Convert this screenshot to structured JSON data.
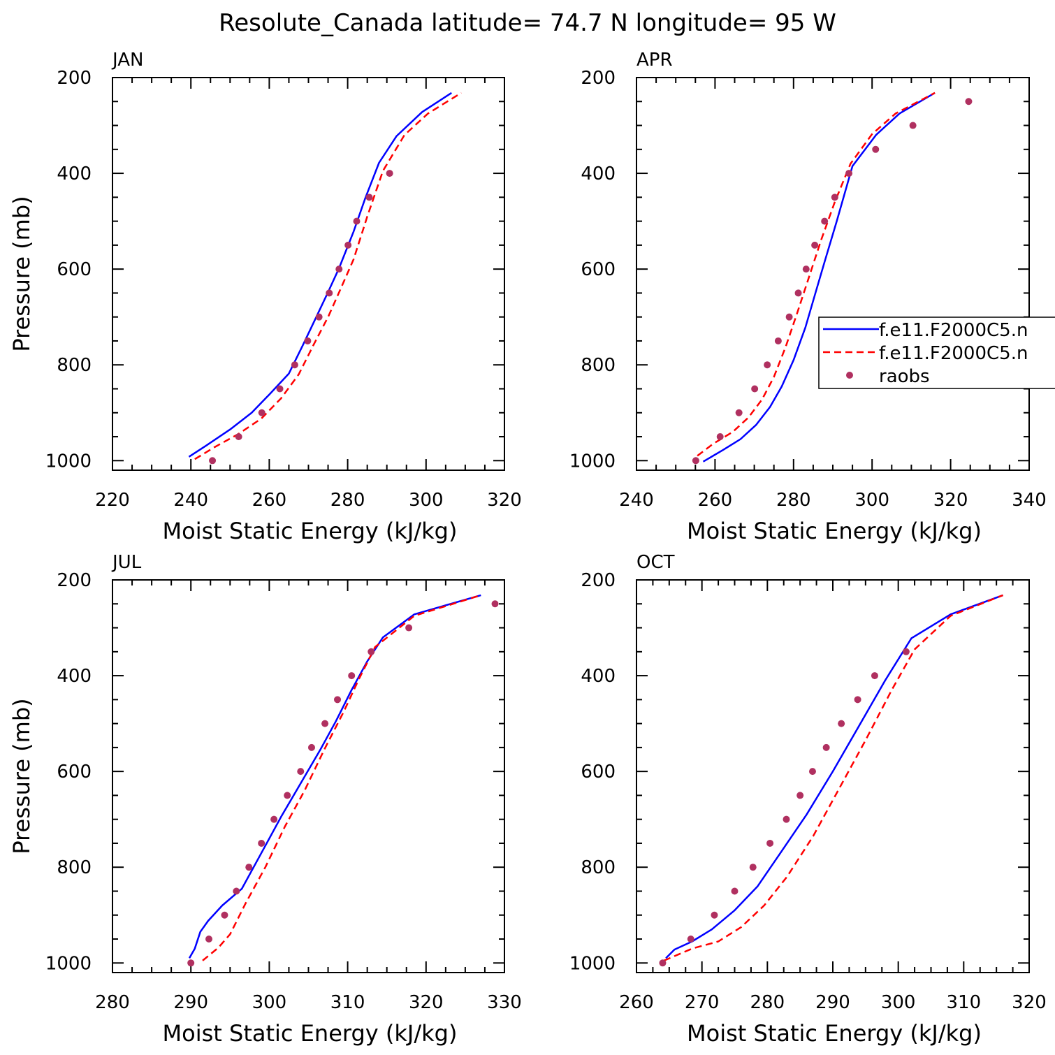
{
  "figure": {
    "title": "Resolute_Canada  latitude= 74.7 N longitude= 95 W",
    "xlabel": "Moist Static Energy (kJ/kg)",
    "ylabel": "Pressure (mb)",
    "legend": {
      "location": "right of APR panel",
      "entries": [
        {
          "label": "f.e11.F2000C5.n",
          "style": "solid",
          "color": "#0000ff"
        },
        {
          "label": "f.e11.F2000C5.n",
          "style": "dashed",
          "color": "#ff0000"
        },
        {
          "label": "raobs",
          "style": "marker",
          "color": "#b03060"
        }
      ]
    }
  },
  "colors": {
    "model_solid": "#0000ff",
    "model_dashed": "#ff0000",
    "raobs": "#b03060",
    "axes": "#000000"
  },
  "chart_data": [
    {
      "type": "line",
      "title": "JAN",
      "xlabel": "Moist Static Energy (kJ/kg)",
      "ylabel": "Pressure (mb)",
      "xlim": [
        220,
        320
      ],
      "ylim": [
        1020,
        200
      ],
      "y_inverted": true,
      "xticks": [
        220,
        240,
        260,
        280,
        300,
        320
      ],
      "yticks": [
        200,
        400,
        600,
        800,
        1000
      ],
      "series": [
        {
          "name": "f.e11.F2000C5.n",
          "style": "solid",
          "color": "#0000ff",
          "x": [
            239.5,
            244,
            250,
            255.5,
            260,
            265,
            268.5,
            272,
            275,
            277.8,
            281.5,
            284.5,
            288,
            292.5,
            299,
            306.5
          ],
          "y": [
            992,
            968,
            935,
            900,
            862,
            818,
            760,
            700,
            648,
            598,
            522,
            452,
            378,
            322,
            272,
            232
          ]
        },
        {
          "name": "f.e11.F2000C5.n",
          "style": "dashed",
          "color": "#ff0000",
          "x": [
            241,
            246,
            252,
            258,
            263,
            267.5,
            271.5,
            275,
            278,
            281.5,
            285,
            289,
            294.5,
            300.5,
            309
          ],
          "y": [
            997,
            972,
            945,
            912,
            870,
            820,
            755,
            700,
            645,
            580,
            490,
            395,
            320,
            275,
            232
          ]
        },
        {
          "name": "raobs",
          "style": "marker",
          "color": "#b03060",
          "x": [
            245.5,
            252.2,
            258.1,
            262.7,
            266.5,
            269.8,
            272.7,
            275.3,
            277.8,
            280.1,
            282.3,
            285.5,
            290.7
          ],
          "y": [
            1000,
            950,
            900,
            850,
            800,
            750,
            700,
            650,
            600,
            550,
            500,
            450,
            400
          ]
        }
      ]
    },
    {
      "type": "line",
      "title": "APR",
      "xlabel": "Moist Static Energy (kJ/kg)",
      "ylabel": "Pressure (mb)",
      "xlim": [
        240,
        340
      ],
      "ylim": [
        1020,
        200
      ],
      "y_inverted": true,
      "xticks": [
        240,
        260,
        280,
        300,
        320,
        340
      ],
      "yticks": [
        200,
        400,
        600,
        800,
        1000
      ],
      "series": [
        {
          "name": "f.e11.F2000C5.n",
          "style": "solid",
          "color": "#0000ff",
          "x": [
            257,
            262,
            266.5,
            270.5,
            274,
            277,
            280,
            283,
            285.5,
            288,
            291,
            295,
            301,
            307,
            316
          ],
          "y": [
            1002,
            978,
            955,
            925,
            888,
            845,
            790,
            722,
            652,
            582,
            500,
            385,
            320,
            275,
            232
          ]
        },
        {
          "name": "f.e11.F2000C5.n",
          "style": "dashed",
          "color": "#ff0000",
          "x": [
            255.5,
            259.5,
            264.5,
            268.5,
            272,
            275,
            278,
            281,
            284,
            287,
            290.5,
            294.5,
            300,
            306,
            316
          ],
          "y": [
            990,
            965,
            940,
            910,
            872,
            825,
            762,
            690,
            615,
            540,
            460,
            380,
            318,
            275,
            232
          ]
        },
        {
          "name": "raobs",
          "style": "marker",
          "color": "#b03060",
          "x": [
            255.1,
            261.3,
            266.1,
            270.1,
            273.3,
            276.1,
            278.9,
            281.2,
            283.2,
            285.4,
            287.9,
            290.5,
            294.1,
            300.9,
            310.4,
            324.6
          ],
          "y": [
            1000,
            950,
            900,
            850,
            800,
            750,
            700,
            650,
            600,
            550,
            500,
            450,
            400,
            350,
            300,
            250
          ]
        }
      ]
    },
    {
      "type": "line",
      "title": "JUL",
      "xlabel": "Moist Static Energy (kJ/kg)",
      "ylabel": "Pressure (mb)",
      "xlim": [
        280,
        330
      ],
      "ylim": [
        1020,
        200
      ],
      "y_inverted": true,
      "xticks": [
        280,
        290,
        300,
        310,
        320,
        330
      ],
      "yticks": [
        200,
        400,
        600,
        800,
        1000
      ],
      "series": [
        {
          "name": "f.e11.F2000C5.n",
          "style": "solid",
          "color": "#0000ff",
          "x": [
            289.8,
            290.5,
            291.2,
            292.2,
            294,
            296.5,
            299,
            301.5,
            304,
            306.5,
            308.5,
            310.5,
            312.5,
            314.5,
            318.5,
            327
          ],
          "y": [
            990,
            970,
            935,
            912,
            880,
            845,
            770,
            695,
            625,
            555,
            495,
            430,
            370,
            320,
            272,
            232
          ]
        },
        {
          "name": "f.e11.F2000C5.n",
          "style": "dashed",
          "color": "#ff0000",
          "x": [
            291.5,
            293.5,
            295,
            297,
            299.5,
            302,
            304.5,
            307,
            309.5,
            311.5,
            313.5,
            318.5,
            327
          ],
          "y": [
            995,
            968,
            940,
            875,
            800,
            715,
            640,
            555,
            475,
            405,
            340,
            275,
            232
          ]
        },
        {
          "name": "raobs",
          "style": "marker",
          "color": "#b03060",
          "x": [
            290,
            292.3,
            294.3,
            295.8,
            297.4,
            299,
            300.6,
            302.3,
            304,
            305.4,
            307.1,
            308.7,
            310.5,
            313,
            317.8,
            328.8
          ],
          "y": [
            1000,
            950,
            900,
            850,
            800,
            750,
            700,
            650,
            600,
            550,
            500,
            450,
            400,
            350,
            300,
            250
          ]
        }
      ]
    },
    {
      "type": "line",
      "title": "OCT",
      "xlabel": "Moist Static Energy (kJ/kg)",
      "ylabel": "Pressure (mb)",
      "xlim": [
        260,
        320
      ],
      "ylim": [
        1020,
        200
      ],
      "y_inverted": true,
      "xticks": [
        260,
        270,
        280,
        290,
        300,
        310,
        320
      ],
      "yticks": [
        200,
        400,
        600,
        800,
        1000
      ],
      "series": [
        {
          "name": "f.e11.F2000C5.n",
          "style": "solid",
          "color": "#0000ff",
          "x": [
            264.5,
            265.8,
            268.5,
            271.5,
            275,
            278.5,
            282,
            286,
            290,
            294,
            298,
            302,
            308,
            316
          ],
          "y": [
            990,
            972,
            955,
            930,
            890,
            840,
            770,
            690,
            600,
            505,
            410,
            322,
            272,
            232
          ]
        },
        {
          "name": "f.e11.F2000C5.n",
          "style": "dashed",
          "color": "#ff0000",
          "x": [
            264.2,
            268.5,
            272.5,
            276,
            279.5,
            283,
            287,
            291,
            295,
            299,
            302.5,
            308,
            316
          ],
          "y": [
            995,
            970,
            955,
            925,
            880,
            820,
            735,
            635,
            535,
            430,
            345,
            275,
            232
          ]
        },
        {
          "name": "raobs",
          "style": "marker",
          "color": "#b03060",
          "x": [
            264,
            268.3,
            271.9,
            275,
            277.8,
            280.4,
            282.9,
            285,
            286.9,
            289,
            291.3,
            293.8,
            296.4,
            301.2
          ],
          "y": [
            1000,
            950,
            900,
            850,
            800,
            750,
            700,
            650,
            600,
            550,
            500,
            450,
            400,
            350
          ]
        }
      ]
    }
  ]
}
